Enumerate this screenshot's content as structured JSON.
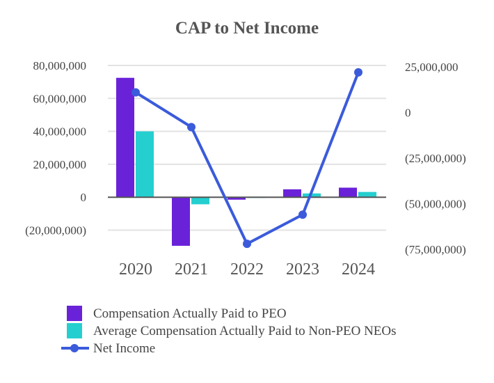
{
  "chart_data": {
    "type": "bar",
    "title": "CAP to Net Income",
    "categories": [
      "2020",
      "2021",
      "2022",
      "2023",
      "2024"
    ],
    "y_left": {
      "ylim": [
        -30000000,
        80000000
      ],
      "ticks": [
        80000000,
        60000000,
        40000000,
        20000000,
        0,
        -20000000
      ],
      "tick_labels": [
        "80,000,000",
        "60,000,000",
        "40,000,000",
        "20,000,000",
        "0",
        "(20,000,000)"
      ]
    },
    "y_right": {
      "ylim": [
        -82000000,
        28000000
      ],
      "ticks": [
        25000000,
        0,
        -25000000,
        -50000000,
        -75000000
      ],
      "tick_labels": [
        "25,000,000",
        "0",
        "(25,000,000)",
        "(50,000,000)",
        "(75,000,000)"
      ]
    },
    "grid": true,
    "legend": "bottom",
    "series": [
      {
        "name": "Compensation Actually Paid to PEO",
        "kind": "bar",
        "axis": "left",
        "color": "#6a22d9",
        "values": [
          72500000,
          -29500000,
          -1500000,
          4800000,
          5800000
        ]
      },
      {
        "name": "Average Compensation Actually Paid to Non-PEO NEOs",
        "kind": "bar",
        "axis": "left",
        "color": "#25cfcf",
        "values": [
          40000000,
          -4300000,
          -300000,
          2300000,
          3200000
        ]
      },
      {
        "name": "Net Income",
        "kind": "line",
        "axis": "right",
        "color": "#3b5bdb",
        "values": [
          11000000,
          -8000000,
          -72000000,
          -56000000,
          22000000
        ]
      }
    ]
  }
}
